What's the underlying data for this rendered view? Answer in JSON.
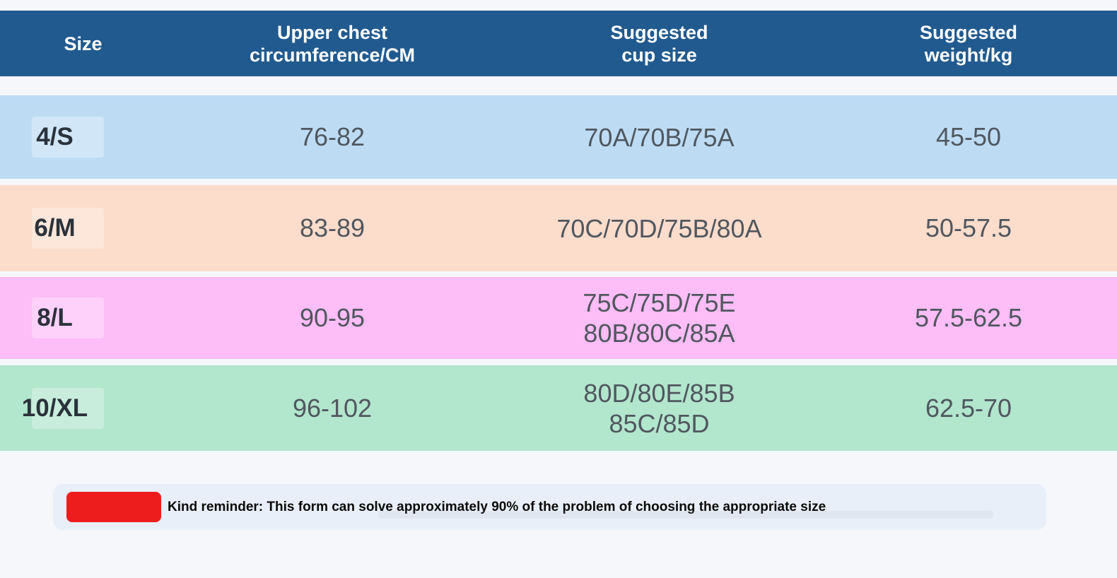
{
  "page_bg": "#f5f7fb",
  "header": {
    "bg": "#215a8e",
    "columns": [
      {
        "line1": "Size",
        "line2": ""
      },
      {
        "line1": "Upper chest",
        "line2": "circumference/CM"
      },
      {
        "line1": "Suggested",
        "line2": "cup size"
      },
      {
        "line1": "Suggested",
        "line2": "weight/kg"
      }
    ]
  },
  "rows": [
    {
      "size": "4/S",
      "chest": "76-82",
      "cup1": "70A/70B/75A",
      "cup2": "",
      "weight": "45-50",
      "bg": "#bddcf4"
    },
    {
      "size": "6/M",
      "chest": "83-89",
      "cup1": "70C/70D/75B/80A",
      "cup2": "",
      "weight": "50-57.5",
      "bg": "#fcdccb"
    },
    {
      "size": "8/L",
      "chest": "90-95",
      "cup1": "75C/75D/75E",
      "cup2": "80B/80C/85A",
      "weight": "57.5-62.5",
      "bg": "#fdbdf6"
    },
    {
      "size": "10/XL",
      "chest": "96-102",
      "cup1": "80D/80E/85B",
      "cup2": "85C/85D",
      "weight": "62.5-70",
      "bg": "#b2e6cd"
    }
  ],
  "reminder": {
    "badge_color": "#ee1d1d",
    "text": "Kind reminder: This form can solve approximately 90% of the problem of choosing the appropriate size"
  },
  "chart_data": {
    "type": "table",
    "title": "Size chart",
    "columns": [
      "Size",
      "Upper chest circumference/CM",
      "Suggested cup size",
      "Suggested weight/kg"
    ],
    "rows": [
      [
        "4/S",
        "76-82",
        "70A/70B/75A",
        "45-50"
      ],
      [
        "6/M",
        "83-89",
        "70C/70D/75B/80A",
        "50-57.5"
      ],
      [
        "8/L",
        "90-95",
        "75C/75D/75E 80B/80C/85A",
        "57.5-62.5"
      ],
      [
        "10/XL",
        "96-102",
        "80D/80E/85B 85C/85D",
        "62.5-70"
      ]
    ],
    "row_colors": [
      "#bddcf4",
      "#fcdccb",
      "#fdbdf6",
      "#b2e6cd"
    ],
    "note": "Kind reminder: This form can solve approximately 90% of the problem of choosing the appropriate size"
  }
}
